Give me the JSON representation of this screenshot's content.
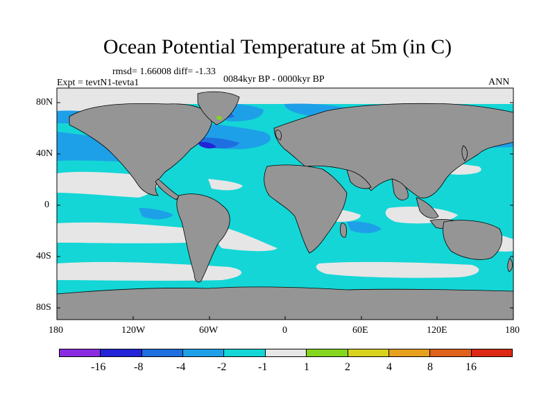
{
  "title": "Ocean Potential Temperature at 5m (in C)",
  "stats": "rmsd= 1.66008 diff= -1.33",
  "experiment": "Expt = tevtN1-tevta1",
  "period": "0084kyr BP - 0000kyr BP",
  "season": "ANN",
  "lat_ticks": [
    "80N",
    "40N",
    "0",
    "40S",
    "80S"
  ],
  "lon_ticks": [
    "180",
    "120W",
    "60W",
    "0",
    "60E",
    "120E",
    "180"
  ],
  "colorbar": {
    "labels": [
      "-16",
      "-8",
      "-4",
      "-2",
      "-1",
      "1",
      "2",
      "4",
      "8",
      "16"
    ],
    "colors": [
      "#8a2be2",
      "#2323d8",
      "#1e6fe0",
      "#1ea0e8",
      "#14d6d6",
      "#e6e6e6",
      "#84d61e",
      "#d8d21e",
      "#e6a01e",
      "#e0601e",
      "#dc2814"
    ]
  },
  "map_colors": {
    "land": "#959595",
    "ocean_base": "#14d6d6",
    "near_zero": "#e6e6e6",
    "cool": "#1ea0e8",
    "cooler": "#1e6fe0",
    "coldest": "#2323d8",
    "warm_spot": "#84d61e",
    "coast": "#000000"
  }
}
